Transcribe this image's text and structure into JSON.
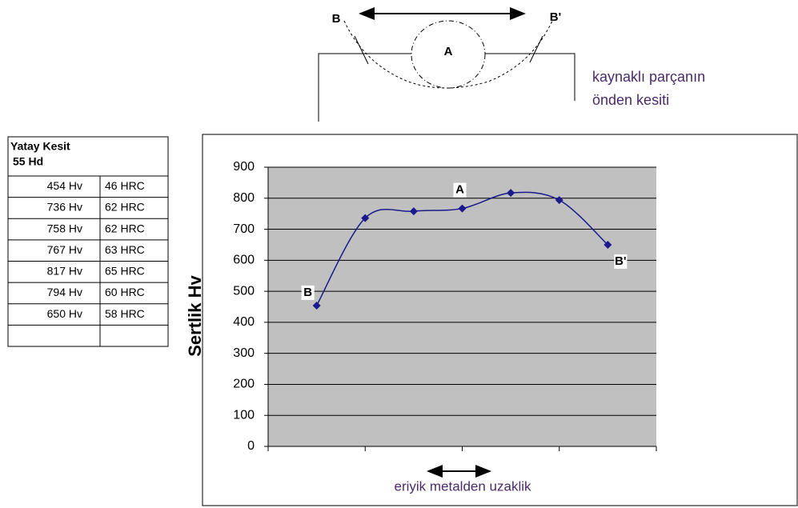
{
  "diagram": {
    "left_label": "B",
    "center_label": "A",
    "right_label": "B'",
    "caption": [
      "kaynaklı parçanın",
      "önden kesiti"
    ]
  },
  "table": {
    "title": "Yatay Kesit",
    "subtitle": "55 Hd",
    "rows": [
      [
        "454 Hv",
        "46 HRC"
      ],
      [
        "736 Hv",
        "62 HRC"
      ],
      [
        "758 Hv",
        "62 HRC"
      ],
      [
        "767 Hv",
        "63 HRC"
      ],
      [
        "817 Hv",
        "65 HRC"
      ],
      [
        "794 Hv",
        "60 HRC"
      ],
      [
        "650 Hv",
        "58 HRC"
      ]
    ]
  },
  "chart_data": {
    "type": "line",
    "y_label": "Sertlik Hv",
    "x_label": "eriyik metalden uzaklik",
    "categories": [
      null,
      null,
      null,
      null,
      null,
      null,
      null
    ],
    "values": [
      454,
      736,
      758,
      767,
      817,
      794,
      650
    ],
    "point_labels": [
      "B",
      null,
      null,
      "A",
      null,
      null,
      "B'"
    ],
    "color": "#1a1a8c",
    "plot_background": "#c0c0c0",
    "ylim": [
      0,
      900
    ],
    "yticks": [
      0,
      100,
      200,
      300,
      400,
      500,
      600,
      700,
      800,
      900
    ],
    "grid": true
  }
}
